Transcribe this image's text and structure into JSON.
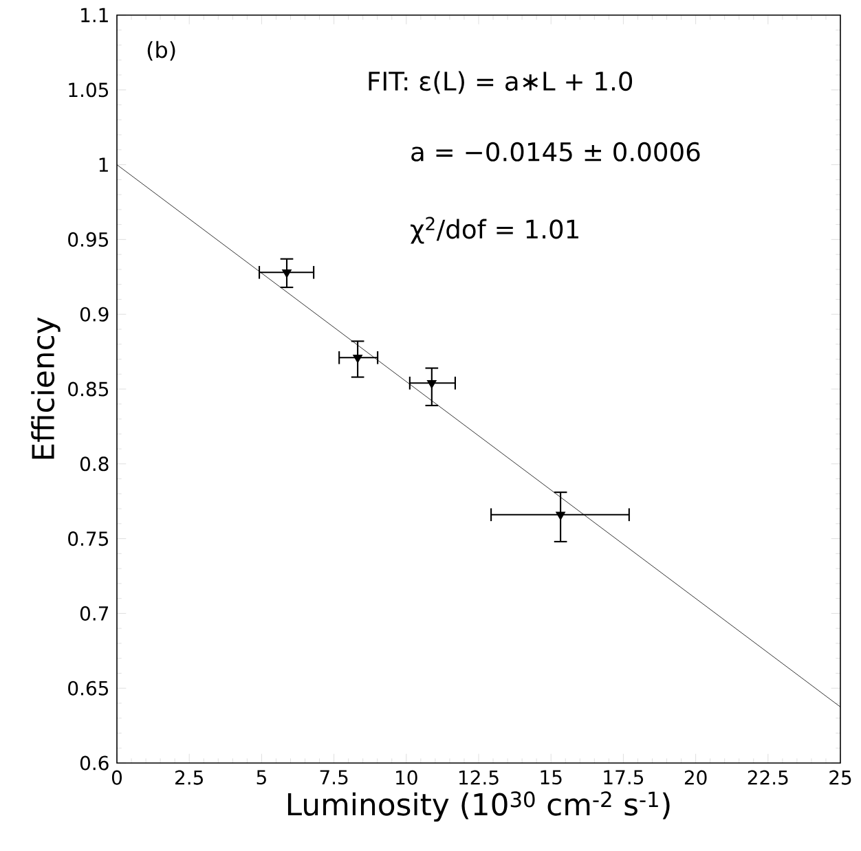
{
  "chart_data": {
    "type": "scatter",
    "xlabel": "Luminosity (10$^{30}$ cm$^{-2}$ s$^{-1}$)",
    "ylabel": "Efficiency",
    "annotations": [
      "(b)",
      "FIT:  ε(L) = a∗L + 1.0",
      "a = −0.0145 ± 0.0006",
      "χ$^{2}$/dof = 1.01"
    ],
    "series": [
      {
        "color": "#000000",
        "marker": "triangle",
        "x": [
          5.87,
          8.32,
          10.88,
          15.33
        ],
        "values": [
          0.928,
          0.871,
          0.854,
          0.766
        ],
        "errors": [
          [
            0.918,
            0.937
          ],
          [
            0.858,
            0.882
          ],
          [
            0.839,
            0.864
          ],
          [
            0.748,
            0.781
          ]
        ],
        "xerrors": [
          [
            4.92,
            6.8
          ],
          [
            7.68,
            9.01
          ],
          [
            10.12,
            11.69
          ],
          [
            12.93,
            17.7
          ]
        ]
      },
      {
        "type": "line",
        "color": "#000000",
        "marker": "none",
        "x": [
          0,
          25
        ],
        "values": [
          1.0,
          0.6375
        ]
      }
    ],
    "xlim": [
      0,
      25
    ],
    "ylim": [
      0.6,
      1.1
    ],
    "xticks": [
      0,
      2.5,
      5,
      7.5,
      10,
      12.5,
      15,
      17.5,
      20,
      22.5,
      25
    ],
    "yticks": [
      0.6,
      0.65,
      0.7,
      0.75,
      0.8,
      0.85,
      0.9,
      0.95,
      1,
      1.05,
      1.1
    ],
    "grid": false
  }
}
